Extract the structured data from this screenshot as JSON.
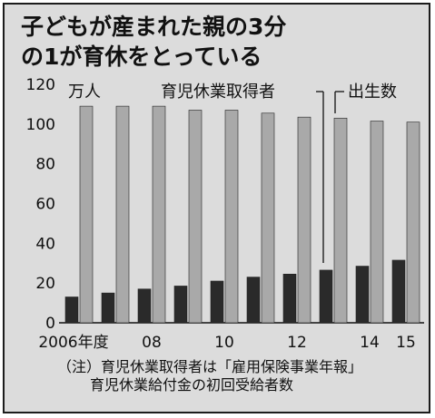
{
  "title": "子どもが産まれた親の3分の1が育休をとっている",
  "notes": [
    "（注）育児休業取得者は「雇用保険事業年報」",
    "育児休業給付金の初回受給者数"
  ],
  "colors": {
    "background": "#dcdcdc",
    "childcare_bar": "#2a2a2a",
    "births_bar": "#a9a9a9"
  },
  "chart_data": {
    "type": "bar",
    "categories": [
      "2006",
      "2007",
      "2008",
      "2009",
      "2010",
      "2011",
      "2012",
      "2013",
      "2014",
      "2015"
    ],
    "x_tick_labels": [
      "2006年度",
      "",
      "08",
      "",
      "10",
      "",
      "12",
      "",
      "14",
      "15"
    ],
    "ylim": [
      0,
      120
    ],
    "y_ticks": [
      0,
      20,
      40,
      60,
      80,
      100,
      120
    ],
    "y_unit": "万人",
    "grid": false,
    "series": [
      {
        "name": "育児休業取得者",
        "values": [
          13,
          15,
          17,
          18.5,
          21,
          23,
          24.5,
          26.5,
          28.5,
          31.5
        ]
      },
      {
        "name": "出生数",
        "values": [
          109,
          109,
          109,
          107,
          107,
          105.5,
          103.5,
          103,
          101.5,
          101
        ]
      }
    ]
  }
}
